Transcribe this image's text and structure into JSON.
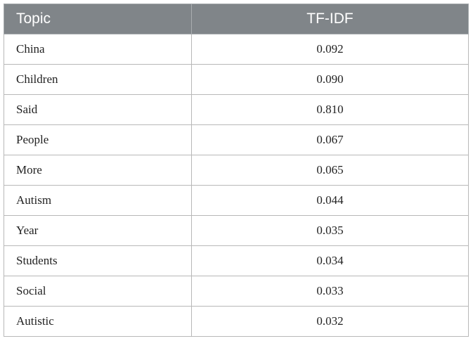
{
  "table": {
    "header": [
      "Topic",
      "TF-IDF"
    ],
    "rows": [
      [
        "China",
        "0.092"
      ],
      [
        "Children",
        "0.090"
      ],
      [
        "Said",
        "0.810"
      ],
      [
        "People",
        "0.067"
      ],
      [
        "More",
        "0.065"
      ],
      [
        "Autism",
        "0.044"
      ],
      [
        "Year",
        "0.035"
      ],
      [
        "Students",
        "0.034"
      ],
      [
        "Social",
        "0.033"
      ],
      [
        "Autistic",
        "0.032"
      ]
    ]
  }
}
